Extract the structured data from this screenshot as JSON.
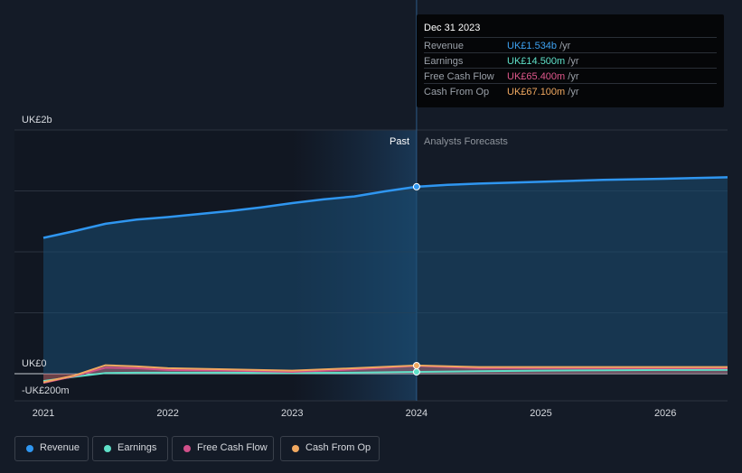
{
  "tooltip": {
    "date": "Dec 31 2023",
    "rows": [
      {
        "label": "Revenue",
        "value": "UK£1.534b",
        "unit": "/yr",
        "color": "#3ea2f2"
      },
      {
        "label": "Earnings",
        "value": "UK£14.500m",
        "unit": "/yr",
        "color": "#5fe0c8"
      },
      {
        "label": "Free Cash Flow",
        "value": "UK£65.400m",
        "unit": "/yr",
        "color": "#e0588c"
      },
      {
        "label": "Cash From Op",
        "value": "UK£67.100m",
        "unit": "/yr",
        "color": "#f0a860"
      }
    ]
  },
  "legend": [
    {
      "label": "Revenue",
      "color": "#2f96f0"
    },
    {
      "label": "Earnings",
      "color": "#5fe0c8"
    },
    {
      "label": "Free Cash Flow",
      "color": "#d0508a"
    },
    {
      "label": "Cash From Op",
      "color": "#f0a860"
    }
  ],
  "chart_data": {
    "type": "line",
    "y_top_label": "UK£2b",
    "y_zero_label": "UK£0",
    "y_bottom_label": "-UK£200m",
    "past_label": "Past",
    "forecast_label": "Analysts Forecasts",
    "ylim": [
      -200,
      2000
    ],
    "x_ticks": [
      {
        "label": "2021",
        "x": 2021.0
      },
      {
        "label": "2022",
        "x": 2022.0
      },
      {
        "label": "2023",
        "x": 2023.0
      },
      {
        "label": "2024",
        "x": 2024.0
      },
      {
        "label": "2025",
        "x": 2025.0
      },
      {
        "label": "2026",
        "x": 2026.0
      }
    ],
    "xlim": [
      2020.75,
      2026.5
    ],
    "divider_x": 2024.0,
    "series": [
      {
        "name": "Revenue",
        "color": "#2f96f0",
        "points": [
          [
            2021.0,
            1115
          ],
          [
            2021.25,
            1170
          ],
          [
            2021.5,
            1230
          ],
          [
            2021.75,
            1265
          ],
          [
            2022.0,
            1285
          ],
          [
            2022.25,
            1310
          ],
          [
            2022.5,
            1335
          ],
          [
            2022.75,
            1365
          ],
          [
            2023.0,
            1400
          ],
          [
            2023.25,
            1430
          ],
          [
            2023.5,
            1455
          ],
          [
            2023.75,
            1497
          ],
          [
            2024.0,
            1534
          ],
          [
            2024.25,
            1550
          ],
          [
            2024.5,
            1560
          ],
          [
            2025.0,
            1575
          ],
          [
            2025.5,
            1590
          ],
          [
            2026.0,
            1600
          ],
          [
            2026.5,
            1612
          ]
        ]
      },
      {
        "name": "Earnings",
        "color": "#5fe0c8",
        "points": [
          [
            2021.0,
            -60
          ],
          [
            2021.25,
            -25
          ],
          [
            2021.5,
            5
          ],
          [
            2021.75,
            8
          ],
          [
            2022.0,
            8
          ],
          [
            2022.5,
            8
          ],
          [
            2023.0,
            5
          ],
          [
            2023.5,
            8
          ],
          [
            2024.0,
            14.5
          ],
          [
            2024.5,
            20
          ],
          [
            2025.0,
            25
          ],
          [
            2025.5,
            28
          ],
          [
            2026.0,
            30
          ],
          [
            2026.5,
            32
          ]
        ]
      },
      {
        "name": "Free Cash Flow",
        "color": "#d0508a",
        "points": [
          [
            2021.0,
            -75
          ],
          [
            2021.25,
            -20
          ],
          [
            2021.5,
            50
          ],
          [
            2021.75,
            45
          ],
          [
            2022.0,
            30
          ],
          [
            2022.5,
            25
          ],
          [
            2023.0,
            15
          ],
          [
            2023.5,
            35
          ],
          [
            2024.0,
            65.4
          ],
          [
            2024.5,
            45
          ],
          [
            2025.0,
            45
          ],
          [
            2025.5,
            45
          ],
          [
            2026.0,
            45
          ],
          [
            2026.5,
            45
          ]
        ]
      },
      {
        "name": "Cash From Op",
        "color": "#f0a860",
        "points": [
          [
            2021.0,
            -70
          ],
          [
            2021.25,
            -15
          ],
          [
            2021.5,
            70
          ],
          [
            2021.75,
            60
          ],
          [
            2022.0,
            45
          ],
          [
            2022.5,
            35
          ],
          [
            2023.0,
            25
          ],
          [
            2023.5,
            45
          ],
          [
            2024.0,
            67.1
          ],
          [
            2024.5,
            55
          ],
          [
            2025.0,
            55
          ],
          [
            2025.5,
            55
          ],
          [
            2026.0,
            55
          ],
          [
            2026.5,
            55
          ]
        ]
      }
    ]
  }
}
